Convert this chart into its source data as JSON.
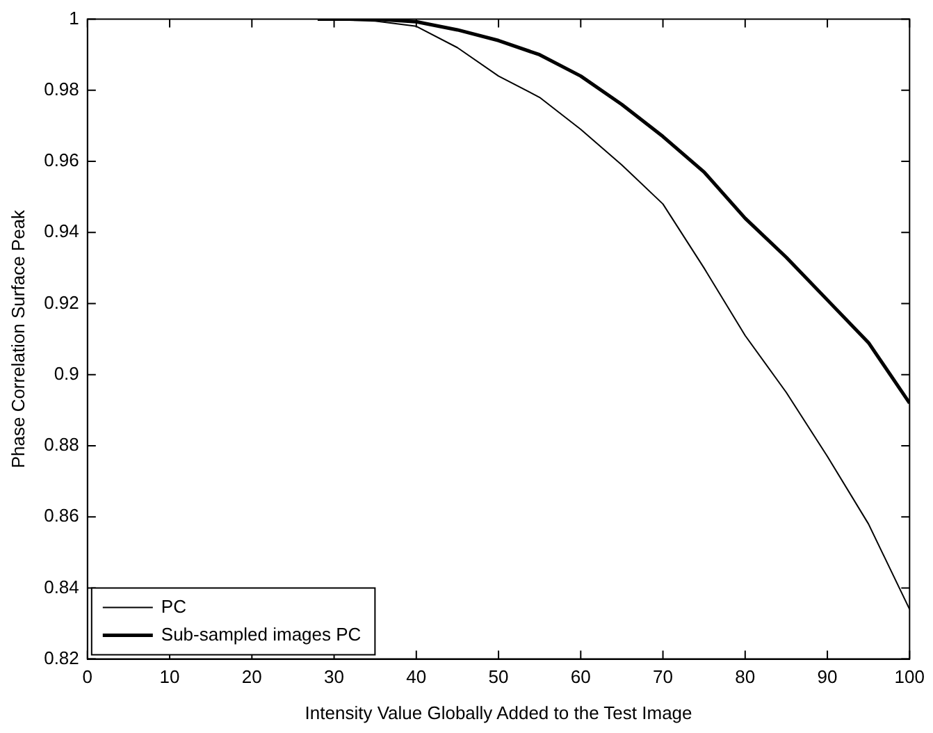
{
  "chart_data": {
    "type": "line",
    "xlabel": "Intensity Value Globally Added to the Test Image",
    "ylabel": "Phase Correlation Surface Peak",
    "x": [
      28,
      35,
      40,
      45,
      50,
      55,
      60,
      65,
      70,
      75,
      80,
      85,
      90,
      95,
      100
    ],
    "series": [
      {
        "name": "PC",
        "color": "#000000",
        "values": [
          1,
          0.9995,
          0.998,
          0.992,
          0.984,
          0.978,
          0.969,
          0.959,
          0.948,
          0.93,
          0.911,
          0.895,
          0.877,
          0.858,
          0.834
        ]
      },
      {
        "name": "Sub-sampled images PC",
        "color": "#000000",
        "values": [
          1,
          1,
          0.9993,
          0.997,
          0.994,
          0.99,
          0.984,
          0.976,
          0.967,
          0.957,
          0.944,
          0.933,
          0.921,
          0.909,
          0.892
        ]
      }
    ],
    "xlim": [
      0,
      100
    ],
    "xticks": [
      0,
      10,
      20,
      30,
      40,
      50,
      60,
      70,
      80,
      90,
      100
    ],
    "ylim": [
      0.82,
      1
    ],
    "yticks": [
      0.82,
      0.84,
      0.86,
      0.88,
      0.9,
      0.92,
      0.94,
      0.96,
      0.98,
      1
    ],
    "grid": false,
    "legend": "bottom left",
    "marker": "none",
    "line_style": "solid"
  }
}
